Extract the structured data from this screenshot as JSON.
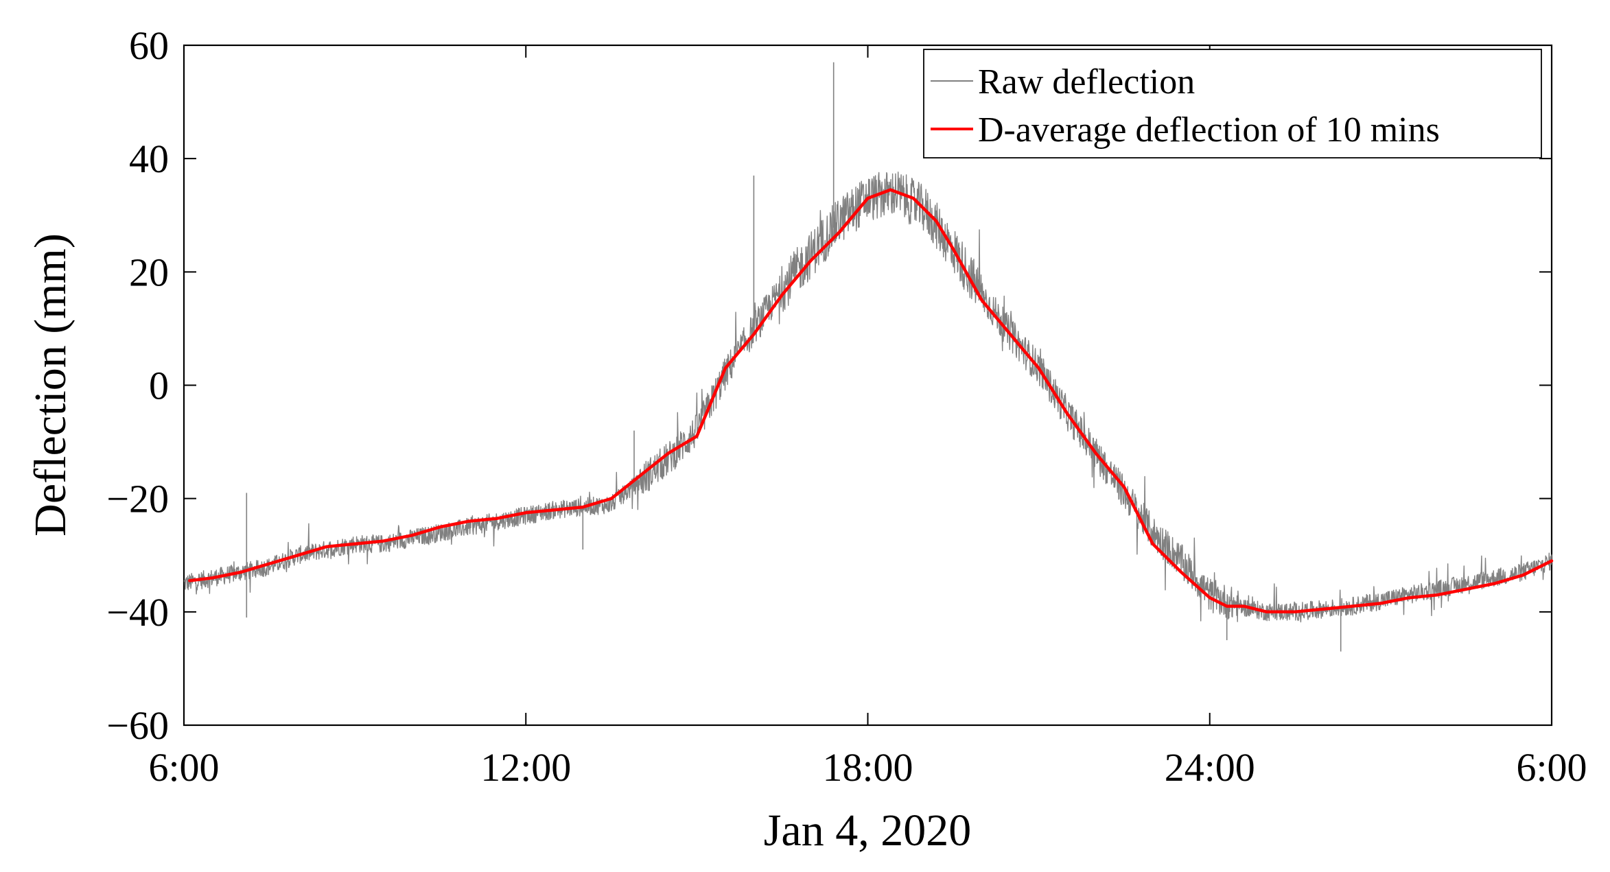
{
  "chart_data": {
    "type": "line",
    "title": "",
    "xlabel": "Jan 4, 2020",
    "ylabel": "Deflection (mm)",
    "xlim": [
      6,
      30
    ],
    "ylim": [
      -60,
      60
    ],
    "x_ticks": [
      {
        "value": 6,
        "label": "6:00"
      },
      {
        "value": 12,
        "label": "12:00"
      },
      {
        "value": 18,
        "label": "18:00"
      },
      {
        "value": 24,
        "label": "24:00"
      },
      {
        "value": 30,
        "label": "6:00"
      }
    ],
    "y_ticks": [
      {
        "value": 60,
        "label": "60"
      },
      {
        "value": 40,
        "label": "40"
      },
      {
        "value": 20,
        "label": "20"
      },
      {
        "value": 0,
        "label": "0"
      },
      {
        "value": -20,
        "label": "−20"
      },
      {
        "value": -40,
        "label": "−40"
      },
      {
        "value": -60,
        "label": "−60"
      }
    ],
    "grid": false,
    "legend_position": "top-right",
    "x_unit": "hours since 0:00, Jan 4 2020",
    "series": [
      {
        "name": "Raw deflection",
        "color": "#808080",
        "style": "noisy",
        "x": [
          6.0,
          6.5,
          7.0,
          7.5,
          8.0,
          8.5,
          9.0,
          9.5,
          10.0,
          10.5,
          11.0,
          11.5,
          12.0,
          12.5,
          13.0,
          13.5,
          14.0,
          14.5,
          15.0,
          15.5,
          16.0,
          16.5,
          17.0,
          17.5,
          18.0,
          18.5,
          19.0,
          19.5,
          20.0,
          20.5,
          21.0,
          21.5,
          22.0,
          22.5,
          23.0,
          23.5,
          24.0,
          24.5,
          25.0,
          25.5,
          26.0,
          26.5,
          27.0,
          27.5,
          28.0,
          28.5,
          29.0,
          29.5,
          30.0
        ],
        "values": [
          -35,
          -34,
          -33,
          -32,
          -30,
          -29,
          -28,
          -28,
          -27,
          -26,
          -25,
          -24,
          -23,
          -22,
          -21.5,
          -21,
          -17,
          -13,
          -8,
          2,
          10,
          17,
          23,
          29,
          33,
          34,
          31,
          24,
          16,
          9,
          3,
          -5,
          -12,
          -19,
          -26,
          -31,
          -37,
          -39,
          -40,
          -40,
          -39.5,
          -39,
          -38,
          -37,
          -36,
          -35,
          -34,
          -33,
          -31
        ],
        "spikes": [
          {
            "x": 7.1,
            "value": -19
          },
          {
            "x": 7.1,
            "value": -41
          },
          {
            "x": 13.0,
            "value": -29
          },
          {
            "x": 13.9,
            "value": -8
          },
          {
            "x": 16.0,
            "value": 37
          },
          {
            "x": 17.4,
            "value": 57
          },
          {
            "x": 24.3,
            "value": -45
          },
          {
            "x": 26.3,
            "value": -47
          }
        ]
      },
      {
        "name": "D-average deflection of 10 mins",
        "color": "#ff0000",
        "style": "line",
        "x": [
          6.1,
          6.5,
          7.0,
          7.5,
          8.0,
          8.5,
          9.0,
          9.5,
          10.0,
          10.5,
          11.0,
          11.5,
          12.0,
          12.5,
          13.0,
          13.5,
          14.0,
          14.5,
          15.0,
          15.5,
          16.0,
          16.5,
          17.0,
          17.5,
          18.0,
          18.4,
          18.8,
          19.2,
          19.5,
          20.0,
          20.5,
          21.0,
          21.5,
          22.0,
          22.5,
          23.0,
          23.5,
          24.0,
          24.3,
          24.6,
          25.0,
          25.5,
          26.0,
          26.5,
          27.0,
          27.5,
          28.0,
          28.5,
          29.0,
          29.5,
          30.0
        ],
        "values": [
          -34.5,
          -34,
          -33,
          -31.5,
          -30,
          -28.5,
          -28,
          -27.5,
          -26.5,
          -25,
          -24,
          -23.5,
          -22.5,
          -22,
          -21.5,
          -20,
          -16,
          -12,
          -9,
          3,
          9,
          16,
          22,
          27,
          33,
          34.5,
          33,
          29,
          24,
          15,
          9,
          3,
          -5,
          -12,
          -18,
          -28,
          -33,
          -37.5,
          -39,
          -39,
          -40,
          -40,
          -39.5,
          -39,
          -38.5,
          -37.5,
          -37,
          -36,
          -35,
          -33.5,
          -31
        ]
      }
    ]
  }
}
